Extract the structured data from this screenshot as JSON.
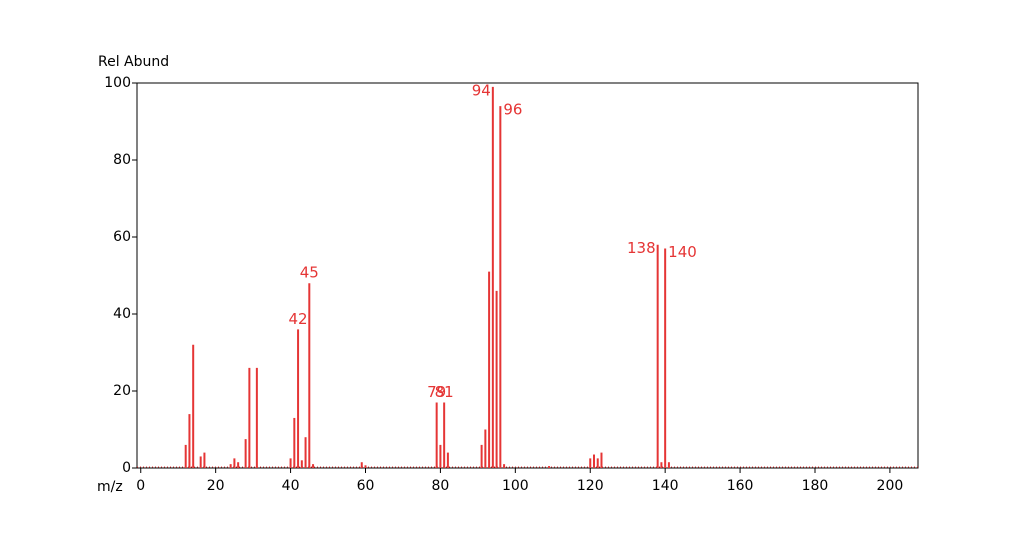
{
  "chart_data": {
    "type": "bar",
    "ylabel": "Rel Abund",
    "xlabel": "m/z",
    "x": [
      12,
      13,
      14,
      16,
      17,
      24,
      25,
      26,
      28,
      29,
      31,
      40,
      41,
      42,
      43,
      44,
      45,
      46,
      59,
      60,
      79,
      80,
      81,
      82,
      91,
      92,
      93,
      94,
      95,
      96,
      97,
      109,
      120,
      121,
      122,
      123,
      138,
      139,
      140,
      141
    ],
    "values": [
      6,
      14,
      32,
      3,
      4,
      1,
      2.5,
      1.5,
      7.5,
      26,
      26,
      2.5,
      13,
      36,
      2,
      8,
      48,
      1,
      1.5,
      0.7,
      17,
      6,
      17,
      4,
      6,
      10,
      51,
      99,
      46,
      94,
      1,
      0.5,
      2.5,
      3.5,
      2.5,
      4,
      58,
      1.5,
      57,
      1.5
    ],
    "color": "#e53535",
    "xlim": [
      -1,
      207.5
    ],
    "ylim": [
      0,
      100
    ],
    "xticks": [
      0,
      20,
      40,
      60,
      80,
      100,
      120,
      140,
      160,
      180,
      200
    ],
    "yticks": [
      0,
      20,
      40,
      60,
      80,
      100
    ],
    "annotations": [
      {
        "text": "42",
        "x": 42,
        "y": 36,
        "side": "center"
      },
      {
        "text": "45",
        "x": 45,
        "y": 48,
        "side": "center"
      },
      {
        "text": "79",
        "x": 79,
        "y": 17,
        "side": "center"
      },
      {
        "text": "81",
        "x": 81,
        "y": 17,
        "side": "center"
      },
      {
        "text": "94",
        "x": 94,
        "y": 99,
        "side": "left"
      },
      {
        "text": "96",
        "x": 96,
        "y": 94,
        "side": "right"
      },
      {
        "text": "138",
        "x": 138,
        "y": 58,
        "side": "left"
      },
      {
        "text": "140",
        "x": 140,
        "y": 57,
        "side": "right"
      }
    ]
  }
}
